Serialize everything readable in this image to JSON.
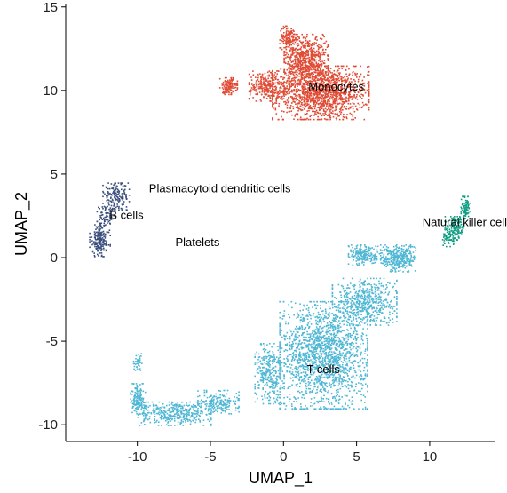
{
  "chart_data": {
    "type": "scatter",
    "title": "",
    "xlabel": "UMAP_1",
    "ylabel": "UMAP_2",
    "xlim": [
      -14.9,
      14.5
    ],
    "ylim": [
      -11.0,
      15.2
    ],
    "x_ticks": [
      -10,
      -5,
      0,
      5,
      10
    ],
    "y_ticks": [
      -10,
      -5,
      0,
      5,
      10,
      15
    ],
    "x_tick_labels": [
      "-10",
      "-5",
      "0",
      "5",
      "10"
    ],
    "y_tick_labels": [
      "-10",
      "-5",
      "0",
      "5",
      "10",
      "15"
    ],
    "grid": false,
    "legend": "none",
    "clusters": [
      {
        "label": "Monocytes",
        "color": "#e04b35",
        "label_pos": [
          1.7,
          10.0
        ],
        "n_points": 2600,
        "blobs": [
          {
            "center": [
              2.5,
              9.9
            ],
            "radius": [
              3.3,
              1.6
            ],
            "weight": 0.55
          },
          {
            "center": [
              1.5,
              11.9
            ],
            "radius": [
              1.5,
              1.5
            ],
            "weight": 0.25
          },
          {
            "center": [
              0.3,
              13.2
            ],
            "radius": [
              0.6,
              0.7
            ],
            "weight": 0.05
          },
          {
            "center": [
              -1.2,
              10.3
            ],
            "radius": [
              1.2,
              0.9
            ],
            "weight": 0.1
          },
          {
            "center": [
              -3.8,
              10.3
            ],
            "radius": [
              0.6,
              0.5
            ],
            "weight": 0.05
          }
        ]
      },
      {
        "label": "B cells",
        "color": "#3b4f7d",
        "label_pos": [
          -11.9,
          2.3
        ],
        "n_points": 420,
        "blobs": [
          {
            "center": [
              -12.6,
              1.1
            ],
            "radius": [
              0.7,
              1.0
            ],
            "weight": 0.45
          },
          {
            "center": [
              -11.5,
              3.7
            ],
            "radius": [
              0.9,
              0.8
            ],
            "weight": 0.4
          },
          {
            "center": [
              -12.2,
              2.5
            ],
            "radius": [
              0.6,
              0.6
            ],
            "weight": 0.15
          }
        ]
      },
      {
        "label": "Natural killer cells",
        "color": "#0f9e83",
        "label_pos": [
          9.5,
          1.9
        ],
        "n_points": 260,
        "blobs": [
          {
            "center": [
              11.7,
              1.8
            ],
            "radius": [
              0.7,
              0.7
            ],
            "weight": 0.55
          },
          {
            "center": [
              12.4,
              3.0
            ],
            "radius": [
              0.3,
              0.7
            ],
            "weight": 0.3
          },
          {
            "center": [
              11.2,
              1.1
            ],
            "radius": [
              0.4,
              0.4
            ],
            "weight": 0.15
          }
        ]
      },
      {
        "label": "T cells",
        "color": "#4fb7d4",
        "label_pos": [
          1.6,
          -6.9
        ],
        "n_points": 4000,
        "blobs": [
          {
            "center": [
              2.7,
              -5.8
            ],
            "radius": [
              3.0,
              3.2
            ],
            "weight": 0.45
          },
          {
            "center": [
              5.5,
              -2.6
            ],
            "radius": [
              2.2,
              1.4
            ],
            "weight": 0.14
          },
          {
            "center": [
              7.8,
              0.0
            ],
            "radius": [
              1.2,
              0.8
            ],
            "weight": 0.08
          },
          {
            "center": [
              5.5,
              0.2
            ],
            "radius": [
              1.1,
              0.6
            ],
            "weight": 0.05
          },
          {
            "center": [
              -1.0,
              -6.9
            ],
            "radius": [
              1.0,
              1.8
            ],
            "weight": 0.08
          },
          {
            "center": [
              -7.5,
              -9.3
            ],
            "radius": [
              2.5,
              0.7
            ],
            "weight": 0.1
          },
          {
            "center": [
              -4.5,
              -8.6
            ],
            "radius": [
              1.4,
              0.7
            ],
            "weight": 0.05
          },
          {
            "center": [
              -10.0,
              -8.4
            ],
            "radius": [
              0.5,
              0.9
            ],
            "weight": 0.04
          },
          {
            "center": [
              -10.0,
              -6.2
            ],
            "radius": [
              0.3,
              0.5
            ],
            "weight": 0.01
          }
        ]
      },
      {
        "label": "Plasmacytoid dendritic cells",
        "color": "#7d3f98",
        "label_pos": [
          -9.2,
          3.9
        ],
        "n_points": 0,
        "blobs": []
      },
      {
        "label": "Platelets",
        "color": "#9a9a9a",
        "label_pos": [
          -7.4,
          0.7
        ],
        "n_points": 0,
        "blobs": []
      }
    ]
  }
}
